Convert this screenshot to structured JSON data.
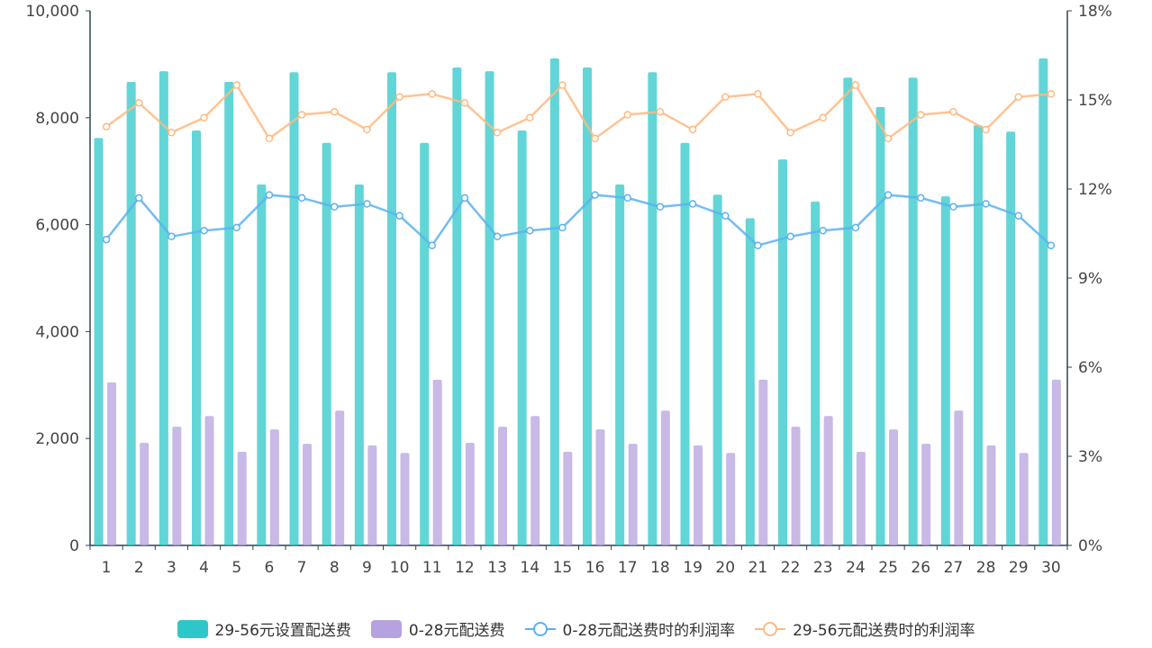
{
  "chart_data": {
    "type": "bar+line",
    "categories": [
      "1",
      "2",
      "3",
      "4",
      "5",
      "6",
      "7",
      "8",
      "9",
      "10",
      "11",
      "12",
      "13",
      "14",
      "15",
      "16",
      "17",
      "18",
      "19",
      "20",
      "21",
      "22",
      "23",
      "24",
      "25",
      "26",
      "27",
      "28",
      "29",
      "30"
    ],
    "left_axis": {
      "ylim": [
        0,
        10000
      ],
      "ticks": [
        "0",
        "2,000",
        "4,000",
        "6,000",
        "8,000",
        "10,000"
      ],
      "tick_values": [
        0,
        2000,
        4000,
        6000,
        8000,
        10000
      ]
    },
    "right_axis": {
      "ylim": [
        0,
        18
      ],
      "unit": "%",
      "ticks": [
        "0%",
        "3%",
        "6%",
        "9%",
        "12%",
        "15%",
        "18%"
      ],
      "tick_values": [
        0,
        3,
        6,
        9,
        12,
        15,
        18
      ]
    },
    "grid": false,
    "legend_position": "bottom",
    "series": [
      {
        "name": "29-56元设置配送费",
        "type": "bar",
        "axis": "left",
        "color": "#2ec7c9",
        "values": [
          7620,
          8670,
          8870,
          7760,
          8670,
          6750,
          8850,
          7530,
          6750,
          8850,
          7530,
          8940,
          8870,
          7760,
          9110,
          8940,
          6750,
          8850,
          7530,
          6560,
          6120,
          7220,
          6430,
          8750,
          8200,
          8750,
          6530,
          7860,
          7740,
          9110
        ]
      },
      {
        "name": "0-28元配送费",
        "type": "bar",
        "axis": "left",
        "color": "#b6a2de",
        "values": [
          3050,
          1920,
          2220,
          2420,
          1750,
          2170,
          1900,
          2520,
          1870,
          1730,
          3100,
          1920,
          2220,
          2420,
          1750,
          2170,
          1900,
          2520,
          1870,
          1730,
          3100,
          2220,
          2420,
          1750,
          2170,
          1900,
          2520,
          1870,
          1730,
          3100
        ]
      },
      {
        "name": "0-28元配送费时的利润率",
        "type": "line",
        "axis": "right",
        "color": "#5ab1ef",
        "values": [
          10.3,
          11.7,
          10.4,
          10.6,
          10.7,
          11.8,
          11.7,
          11.4,
          11.5,
          11.1,
          10.1,
          11.7,
          10.4,
          10.6,
          10.7,
          11.8,
          11.7,
          11.4,
          11.5,
          11.1,
          10.1,
          10.4,
          10.6,
          10.7,
          11.8,
          11.7,
          11.4,
          11.5,
          11.1,
          10.1
        ]
      },
      {
        "name": "29-56元配送费时的利润率",
        "type": "line",
        "axis": "right",
        "color": "#ffb980",
        "values": [
          14.1,
          14.9,
          13.9,
          14.4,
          15.5,
          13.7,
          14.5,
          14.6,
          14.0,
          15.1,
          15.2,
          14.9,
          13.9,
          14.4,
          15.5,
          13.7,
          14.5,
          14.6,
          14.0,
          15.1,
          15.2,
          13.9,
          14.4,
          15.5,
          13.7,
          14.5,
          14.6,
          14.0,
          15.1,
          15.2
        ]
      }
    ]
  }
}
